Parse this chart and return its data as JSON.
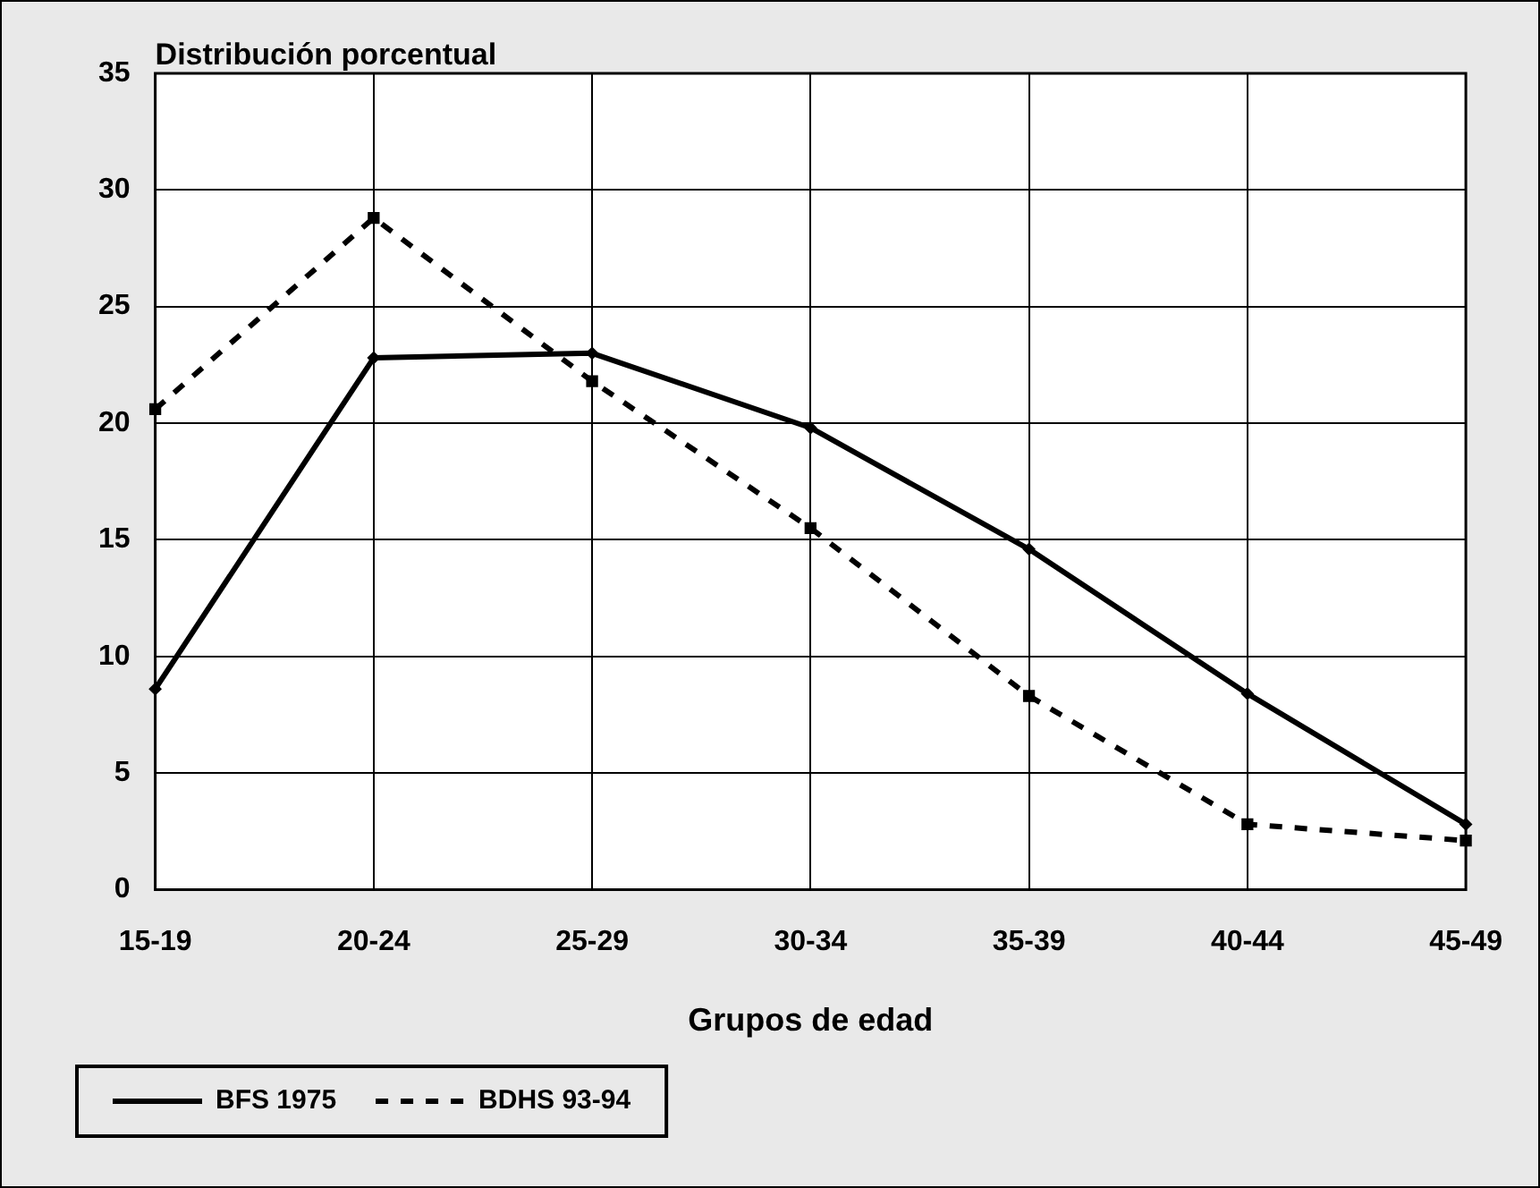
{
  "chart_data": {
    "type": "line",
    "ylabel": "Distribución porcentual",
    "xlabel": "Grupos de edad",
    "categories": [
      "15-19",
      "20-24",
      "25-29",
      "30-34",
      "35-39",
      "40-44",
      "45-49"
    ],
    "series": [
      {
        "name": "BFS 1975",
        "color": "#000000",
        "marker": "diamond",
        "line_style": "solid",
        "values": [
          8.6,
          22.8,
          23.0,
          19.8,
          14.6,
          8.4,
          2.8
        ]
      },
      {
        "name": "BDHS 93-94",
        "color": "#000000",
        "marker": "square",
        "line_style": "dashed",
        "values": [
          20.6,
          28.8,
          21.8,
          15.5,
          8.3,
          2.8,
          2.1
        ]
      }
    ],
    "ylim": [
      0,
      35
    ],
    "yticks": [
      0,
      5,
      10,
      15,
      20,
      25,
      30,
      35
    ],
    "grid": true,
    "legend": "bottom left"
  }
}
